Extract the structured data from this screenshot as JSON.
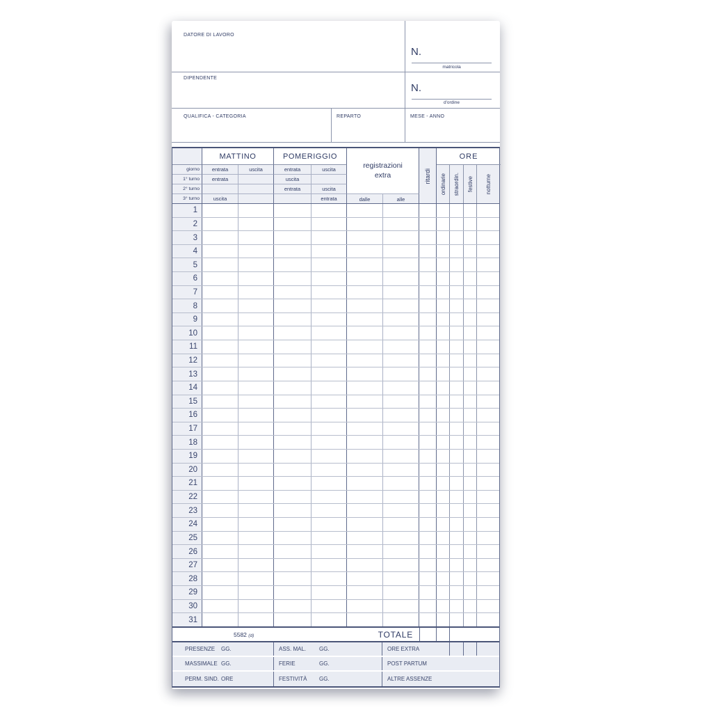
{
  "colors": {
    "ink_navy": "#2e3a63",
    "line_dark": "#5f6a8c",
    "line_light": "#aab1c5",
    "cell_gray": "#edeff5",
    "summary_gray": "#e9ecf3"
  },
  "header": {
    "employer_label": "DATORE DI LAVORO",
    "employee_label": "DIPENDENTE",
    "qualification_label": "QUALIFICA - CATEGORIA",
    "department_label": "REPARTO",
    "month_year_label": "MESE - ANNO",
    "matricola_n": "N.",
    "matricola_caption": "matricola",
    "ordine_n": "N.",
    "ordine_caption": "d'ordine"
  },
  "table": {
    "morning_label": "MATTINO",
    "afternoon_label": "POMERIGGIO",
    "extra_label_line1": "registrazioni",
    "extra_label_line2": "extra",
    "extra_from_label": "dalle",
    "extra_to_label": "alle",
    "delays_label": "ritardi",
    "hours_label": "ORE",
    "hours_columns": [
      "ordinarie",
      "straordin.",
      "festive",
      "notturne"
    ],
    "shift_rows": [
      {
        "label": "giorno",
        "cells": [
          "entrata",
          "uscita",
          "entrata",
          "uscita"
        ]
      },
      {
        "label": "1° turno",
        "cells": [
          "entrata",
          "",
          "uscita",
          ""
        ]
      },
      {
        "label": "2° turno",
        "cells": [
          "",
          "",
          "entrata",
          "uscita"
        ]
      },
      {
        "label": "3° turno",
        "cells": [
          "uscita",
          "",
          "",
          "entrata"
        ]
      }
    ],
    "days": [
      1,
      2,
      3,
      4,
      5,
      6,
      7,
      8,
      9,
      10,
      11,
      12,
      13,
      14,
      15,
      16,
      17,
      18,
      19,
      20,
      21,
      22,
      23,
      24,
      25,
      26,
      27,
      28,
      29,
      30,
      31
    ],
    "form_number": "5582",
    "form_number_note": "(d)",
    "total_label": "TOTALE"
  },
  "summary": {
    "rows": [
      {
        "cells": [
          {
            "label": "PRESENZE",
            "unit": "GG."
          },
          {
            "label": "ASS. MAL.",
            "unit": "GG."
          },
          {
            "label": "ORE EXTRA",
            "unit": "",
            "subcells": 3
          }
        ]
      },
      {
        "cells": [
          {
            "label": "MASSIMALE",
            "unit": "GG."
          },
          {
            "label": "FERIE",
            "unit": "GG."
          },
          {
            "label": "POST PARTUM",
            "unit": ""
          }
        ]
      },
      {
        "cells": [
          {
            "label": "PERM. SIND.",
            "unit": "ORE"
          },
          {
            "label": "FESTIVITÀ",
            "unit": "GG."
          },
          {
            "label": "ALTRE ASSENZE",
            "unit": ""
          }
        ]
      }
    ]
  }
}
